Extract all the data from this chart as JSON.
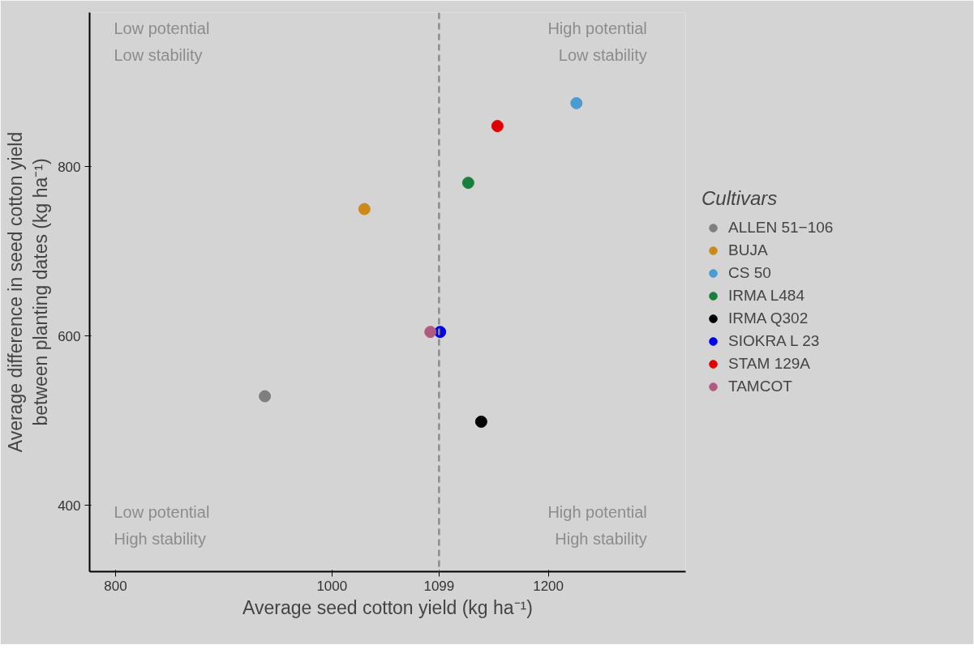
{
  "chart_data": {
    "type": "scatter",
    "xlabel": "Average seed cotton yield (kg ha⁻¹)",
    "ylabel": "Average difference in seed cotton yield\nbetween planting dates (kg ha⁻¹)",
    "legend_title": "Cultivars",
    "legend": "right",
    "grid": false,
    "marker": "circle",
    "annotations": [
      "Low potential\nLow stability",
      "High potential\nLow stability",
      "Low potential\nHigh stability",
      "High potential\nHigh stability"
    ],
    "xlim": [
      776,
      1327
    ],
    "ylim": [
      322,
      982
    ],
    "xticks": [
      800,
      1000,
      1099,
      1200
    ],
    "yticks": [
      400,
      600,
      800
    ],
    "ref_lines": [
      {
        "axis": "x",
        "value": 1099,
        "color": "#8c8c8c",
        "line_style": "dashed"
      }
    ],
    "series": [
      {
        "name": "ALLEN 51−106",
        "color": "#7f7f7f",
        "x": [
          938
        ],
        "values": [
          529
        ]
      },
      {
        "name": "BUJA",
        "color": "#cc8a1a",
        "x": [
          1030
        ],
        "values": [
          750
        ]
      },
      {
        "name": "CS 50",
        "color": "#4a9bd0",
        "x": [
          1226
        ],
        "values": [
          875
        ]
      },
      {
        "name": "IRMA L484",
        "color": "#1a7f3a",
        "x": [
          1126
        ],
        "values": [
          781
        ]
      },
      {
        "name": "IRMA Q302",
        "color": "#000000",
        "x": [
          1138
        ],
        "values": [
          499
        ]
      },
      {
        "name": "SIOKRA L 23",
        "color": "#0000ee",
        "x": [
          1100
        ],
        "values": [
          605
        ]
      },
      {
        "name": "STAM 129A",
        "color": "#e00000",
        "x": [
          1153
        ],
        "values": [
          848
        ]
      },
      {
        "name": "TAMCOT",
        "color": "#b05a80",
        "x": [
          1091
        ],
        "values": [
          605
        ]
      }
    ]
  }
}
